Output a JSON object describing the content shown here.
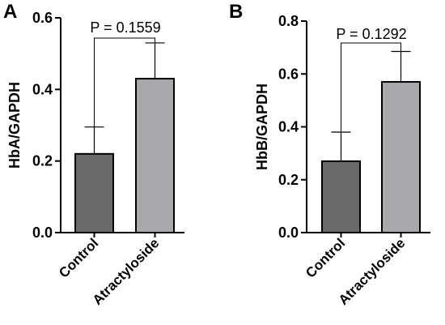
{
  "chart_data": [
    {
      "panel": "A",
      "type": "bar",
      "categories": [
        "Control",
        "Atractyloside"
      ],
      "values": [
        0.22,
        0.43
      ],
      "errors": [
        0.075,
        0.1
      ],
      "ylabel": "HbA/GAPDH",
      "ylim": [
        0,
        0.6
      ],
      "yticks": [
        "0.0",
        "0.2",
        "0.4",
        "0.6"
      ],
      "annotation": "P = 0.1559",
      "colors": [
        "#696969",
        "#a8a8ad"
      ]
    },
    {
      "panel": "B",
      "type": "bar",
      "categories": [
        "Control",
        "Atractyloside"
      ],
      "values": [
        0.27,
        0.57
      ],
      "errors": [
        0.11,
        0.115
      ],
      "ylabel": "HbB/GAPDH",
      "ylim": [
        0,
        0.8
      ],
      "yticks": [
        "0.0",
        "0.2",
        "0.4",
        "0.6",
        "0.8"
      ],
      "annotation": "P = 0.1292",
      "colors": [
        "#696969",
        "#a8a8ad"
      ]
    }
  ]
}
